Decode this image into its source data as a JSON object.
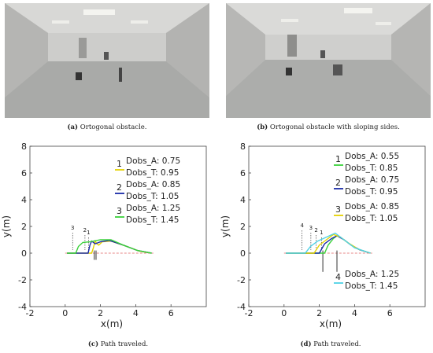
{
  "captions": {
    "a": {
      "tag": "(a)",
      "text": "Ortogonal obstacle."
    },
    "b": {
      "tag": "(b)",
      "text": "Ortogonal obstacle with sloping sides."
    },
    "c": {
      "tag": "(c)",
      "text": "Path traveled."
    },
    "d": {
      "tag": "(d)",
      "text": "Path traveled."
    }
  },
  "chart_data": [
    {
      "type": "line",
      "title": "",
      "xlabel": "x(m)",
      "ylabel": "y(m)",
      "xlim": [
        -2,
        8
      ],
      "ylim": [
        -4,
        8
      ],
      "xticks": [
        -2,
        0,
        2,
        4,
        6
      ],
      "yticks": [
        -4,
        -2,
        0,
        2,
        4,
        6,
        8
      ],
      "grid": false,
      "legend": "right",
      "reference_path": {
        "x": [
          0,
          5
        ],
        "y": [
          0,
          0
        ],
        "color": "#e06060",
        "style": "dashed"
      },
      "obstacle": {
        "x": [
          1.65,
          1.75
        ],
        "y": [
          -0.5,
          0.2
        ],
        "color": "#333333"
      },
      "series": [
        {
          "name": "1",
          "color": "#e6d200",
          "labels": [
            "Dobs_A: 0.75",
            "Dobs_T: 0.95"
          ],
          "x": [
            0.1,
            1.5,
            1.6,
            1.7,
            1.8,
            1.9,
            2.1,
            2.6,
            3.4,
            4.2,
            4.9
          ],
          "y": [
            0.0,
            0.0,
            0.4,
            0.9,
            0.7,
            0.6,
            0.85,
            0.9,
            0.55,
            0.15,
            0.0
          ]
        },
        {
          "name": "2",
          "color": "#1a2aa8",
          "labels": [
            "Dobs_A: 0.85",
            "Dobs_T: 1.05"
          ],
          "x": [
            0.1,
            1.3,
            1.4,
            1.5,
            1.7,
            2.0,
            2.5,
            3.3,
            4.1,
            4.9
          ],
          "y": [
            0.0,
            0.0,
            0.6,
            0.9,
            0.7,
            0.85,
            0.95,
            0.6,
            0.2,
            0.0
          ]
        },
        {
          "name": "3",
          "color": "#3ad13a",
          "labels": [
            "Dobs_A: 1.25",
            "Dobs_T: 1.45"
          ],
          "x": [
            0.1,
            0.6,
            0.75,
            1.0,
            1.4,
            2.0,
            2.6,
            3.3,
            4.1,
            4.9
          ],
          "y": [
            0.0,
            0.0,
            0.5,
            0.8,
            0.85,
            1.0,
            1.0,
            0.6,
            0.2,
            0.0
          ]
        }
      ]
    },
    {
      "type": "line",
      "title": "",
      "xlabel": "x(m)",
      "ylabel": "y(m)",
      "xlim": [
        -2,
        8
      ],
      "ylim": [
        -4,
        8
      ],
      "xticks": [
        -2,
        0,
        2,
        4,
        6
      ],
      "yticks": [
        -4,
        -2,
        0,
        2,
        4,
        6,
        8
      ],
      "grid": false,
      "legend": "right",
      "reference_path": {
        "x": [
          0,
          5
        ],
        "y": [
          0,
          0
        ],
        "color": "#e06060",
        "style": "dashed"
      },
      "obstacle": {
        "x": [
          2.2,
          3.0
        ],
        "y": [
          -1.4,
          0.2
        ],
        "color": "#333333"
      },
      "series": [
        {
          "name": "1",
          "color": "#3ad13a",
          "labels": [
            "Dobs_A: 0.55",
            "Dobs_T: 0.85"
          ],
          "x": [
            0.1,
            2.3,
            2.5,
            2.8,
            3.0,
            3.3,
            3.7,
            4.2,
            4.9
          ],
          "y": [
            0.0,
            0.0,
            0.6,
            1.1,
            1.3,
            1.1,
            0.7,
            0.3,
            0.0
          ]
        },
        {
          "name": "2",
          "color": "#1a2aa8",
          "labels": [
            "Dobs_A: 0.75",
            "Dobs_T: 0.95"
          ],
          "x": [
            0.1,
            2.0,
            2.3,
            2.7,
            3.0,
            3.4,
            3.8,
            4.3,
            4.9
          ],
          "y": [
            0.0,
            0.0,
            0.7,
            1.1,
            1.3,
            1.0,
            0.6,
            0.25,
            0.0
          ]
        },
        {
          "name": "3",
          "color": "#e6d200",
          "labels": [
            "Dobs_A: 0.85",
            "Dobs_T: 1.05"
          ],
          "x": [
            0.1,
            1.7,
            2.0,
            2.4,
            2.8,
            3.2,
            3.6,
            4.2,
            4.9
          ],
          "y": [
            0.0,
            0.0,
            0.6,
            1.0,
            1.4,
            1.2,
            0.8,
            0.3,
            0.0
          ]
        },
        {
          "name": "4",
          "color": "#4fd2e6",
          "labels": [
            "Dobs_A: 1.25",
            "Dobs_T: 1.45"
          ],
          "x": [
            0.1,
            1.2,
            1.5,
            1.9,
            2.4,
            2.9,
            3.4,
            4.0,
            4.9
          ],
          "y": [
            0.0,
            0.0,
            0.5,
            0.9,
            1.2,
            1.5,
            1.0,
            0.4,
            0.0
          ]
        }
      ]
    }
  ]
}
